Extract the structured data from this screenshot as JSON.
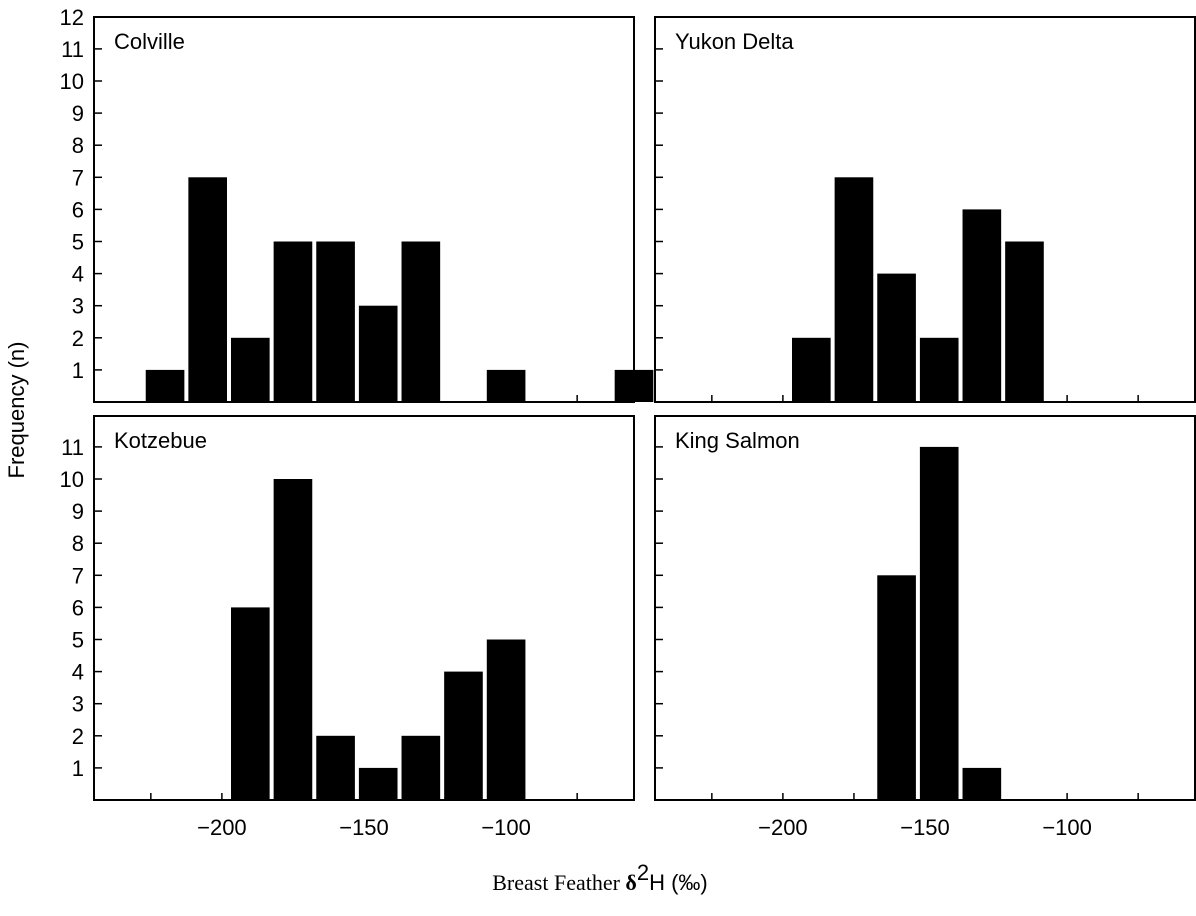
{
  "ylabel": "Frequency (n)",
  "xlabel": {
    "prefix": "Breast Feather ",
    "delta": "δ",
    "superscript": "2",
    "suffix": "H (‰)"
  },
  "colors": {
    "bar": "#000000",
    "frame": "#000000",
    "background": "#ffffff"
  },
  "chart_data": [
    {
      "type": "bar",
      "title": "Colville",
      "bin_width": 15,
      "xlim": [
        -245,
        -55
      ],
      "ylim": [
        0,
        12
      ],
      "yticks": [
        1,
        2,
        3,
        4,
        5,
        6,
        7,
        8,
        9,
        10,
        11,
        12
      ],
      "xticks": [],
      "bins": [
        {
          "x": -220,
          "value": 1
        },
        {
          "x": -205,
          "value": 7
        },
        {
          "x": -190,
          "value": 2
        },
        {
          "x": -175,
          "value": 5
        },
        {
          "x": -160,
          "value": 5
        },
        {
          "x": -145,
          "value": 3
        },
        {
          "x": -130,
          "value": 5
        },
        {
          "x": -100,
          "value": 1
        },
        {
          "x": -55,
          "value": 1
        }
      ]
    },
    {
      "type": "bar",
      "title": "Yukon Delta",
      "bin_width": 15,
      "xlim": [
        -245,
        -55
      ],
      "ylim": [
        0,
        12
      ],
      "yticks": [],
      "xticks": [],
      "bins": [
        {
          "x": -190,
          "value": 2
        },
        {
          "x": -175,
          "value": 7
        },
        {
          "x": -160,
          "value": 4
        },
        {
          "x": -145,
          "value": 2
        },
        {
          "x": -130,
          "value": 6
        },
        {
          "x": -115,
          "value": 5
        }
      ]
    },
    {
      "type": "bar",
      "title": "Kotzebue",
      "bin_width": 15,
      "xlim": [
        -245,
        -55
      ],
      "ylim": [
        0,
        12
      ],
      "yticks": [
        1,
        2,
        3,
        4,
        5,
        6,
        7,
        8,
        9,
        10,
        11
      ],
      "xticks": [
        "−200",
        "−150",
        "−100"
      ],
      "xtick_values": [
        -200,
        -150,
        -100
      ],
      "bins": [
        {
          "x": -190,
          "value": 6
        },
        {
          "x": -175,
          "value": 10
        },
        {
          "x": -160,
          "value": 2
        },
        {
          "x": -145,
          "value": 1
        },
        {
          "x": -130,
          "value": 2
        },
        {
          "x": -115,
          "value": 4
        },
        {
          "x": -100,
          "value": 5
        }
      ]
    },
    {
      "type": "bar",
      "title": "King Salmon",
      "bin_width": 15,
      "xlim": [
        -245,
        -55
      ],
      "ylim": [
        0,
        12
      ],
      "yticks": [],
      "xticks": [
        "−200",
        "−150",
        "−100"
      ],
      "xtick_values": [
        -200,
        -150,
        -100
      ],
      "bins": [
        {
          "x": -160,
          "value": 7
        },
        {
          "x": -145,
          "value": 11
        },
        {
          "x": -130,
          "value": 1
        }
      ]
    }
  ]
}
